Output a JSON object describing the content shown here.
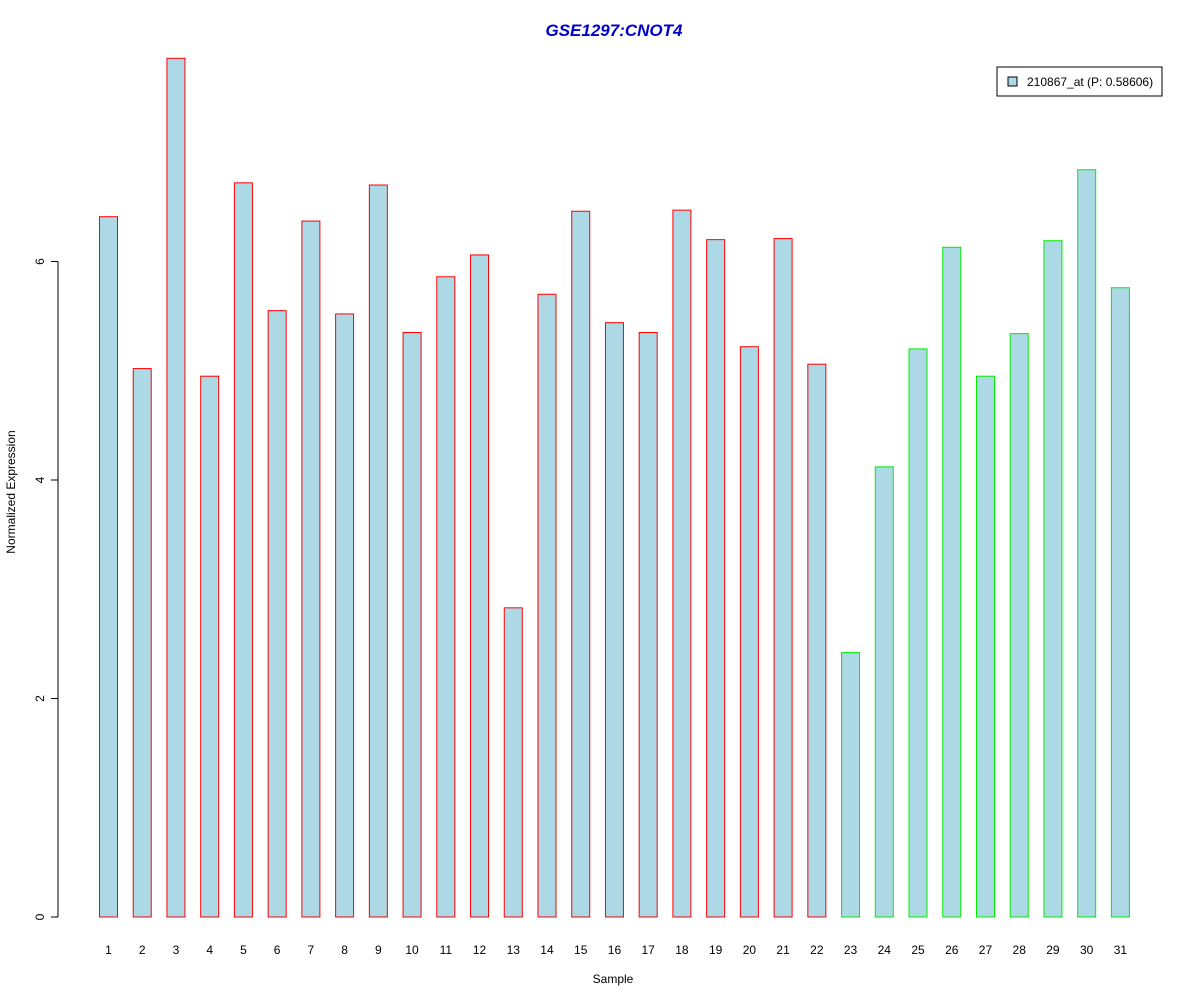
{
  "chart_data": {
    "type": "bar",
    "title": "GSE1297:CNOT4",
    "xlabel": "Sample",
    "ylabel": "Normalized Expression",
    "ylim": [
      0,
      7.85
    ],
    "yticks": [
      0,
      2,
      4,
      6
    ],
    "categories": [
      "1",
      "2",
      "3",
      "4",
      "5",
      "6",
      "7",
      "8",
      "9",
      "10",
      "11",
      "12",
      "13",
      "14",
      "15",
      "16",
      "17",
      "18",
      "19",
      "20",
      "21",
      "22",
      "23",
      "24",
      "25",
      "26",
      "27",
      "28",
      "29",
      "30",
      "31"
    ],
    "series": [
      {
        "name": "210867_at (P: 0.58606)",
        "values": [
          6.41,
          5.02,
          7.86,
          4.95,
          6.72,
          5.55,
          6.37,
          5.52,
          6.7,
          5.35,
          5.86,
          6.06,
          2.83,
          5.7,
          6.46,
          5.44,
          5.35,
          6.47,
          6.2,
          5.22,
          6.21,
          5.06,
          2.42,
          4.12,
          5.2,
          6.13,
          4.95,
          5.34,
          6.19,
          6.84,
          5.76
        ],
        "group_labels": [
          "red",
          "red",
          "red",
          "red",
          "red",
          "red",
          "red",
          "red",
          "red",
          "red",
          "red",
          "red",
          "red",
          "red",
          "red",
          "red",
          "red",
          "red",
          "red",
          "red",
          "red",
          "red",
          "green",
          "green",
          "green",
          "green",
          "green",
          "green",
          "green",
          "green",
          "green"
        ]
      }
    ],
    "colors": {
      "title": "#0000cc",
      "fill": "#add8e6",
      "group_a_border": "#ff0000",
      "group_b_border": "#00ee00",
      "axis": "#000000"
    },
    "legend": {
      "position": "top-right",
      "label": "210867_at (P: 0.58606)"
    },
    "grid": false
  }
}
